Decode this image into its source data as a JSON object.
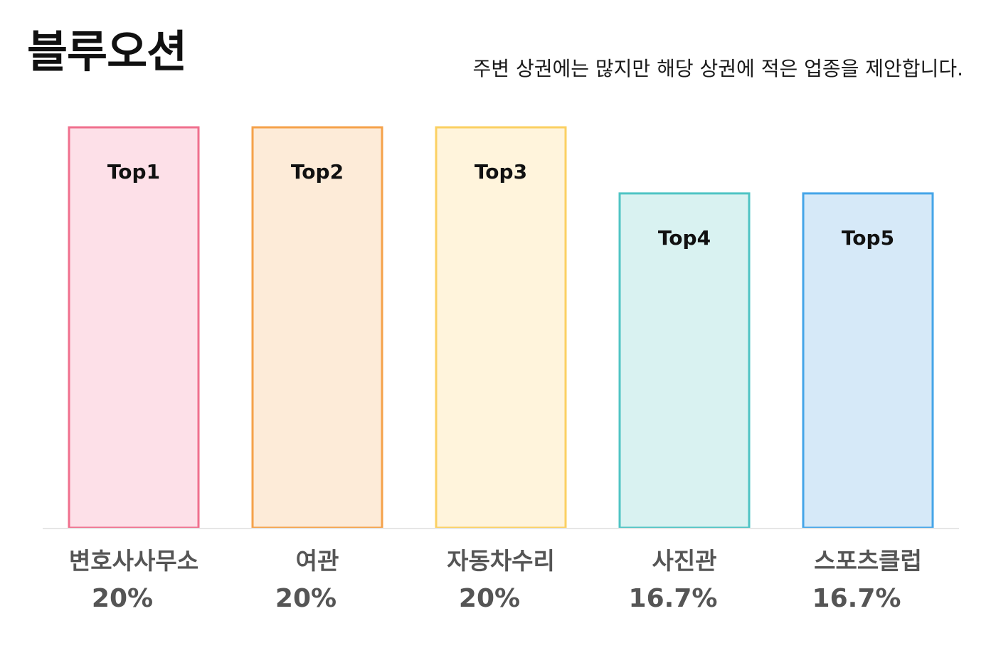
{
  "header": {
    "title": "블루오션",
    "subtitle": "주변 상권에는 많지만 해당 상권에 적은 업종을 제안합니다."
  },
  "chart_data": {
    "type": "bar",
    "title": "블루오션",
    "subtitle": "주변 상권에는 많지만 해당 상권에 적은 업종을 제안합니다.",
    "categories": [
      "변호사사무소",
      "여관",
      "자동차수리",
      "사진관",
      "스포츠클럽"
    ],
    "values": [
      20,
      20,
      20,
      16.7,
      16.7
    ],
    "value_labels": [
      "20%",
      "20%",
      "20%",
      "16.7%",
      "16.7%"
    ],
    "bar_labels": [
      "Top1",
      "Top2",
      "Top3",
      "Top4",
      "Top5"
    ],
    "unit": "%",
    "ylim": [
      0,
      20
    ],
    "grid": false,
    "legend": "none",
    "colors": [
      {
        "fill": "#fde0e8",
        "stroke": "#f0708e"
      },
      {
        "fill": "#fdebd8",
        "stroke": "#f5a24a"
      },
      {
        "fill": "#fff4dc",
        "stroke": "#fbd062"
      },
      {
        "fill": "#d9f2f1",
        "stroke": "#4fc4c4"
      },
      {
        "fill": "#d6e9f8",
        "stroke": "#45a5e8"
      }
    ],
    "baseline_color": "#e6e6e6"
  }
}
